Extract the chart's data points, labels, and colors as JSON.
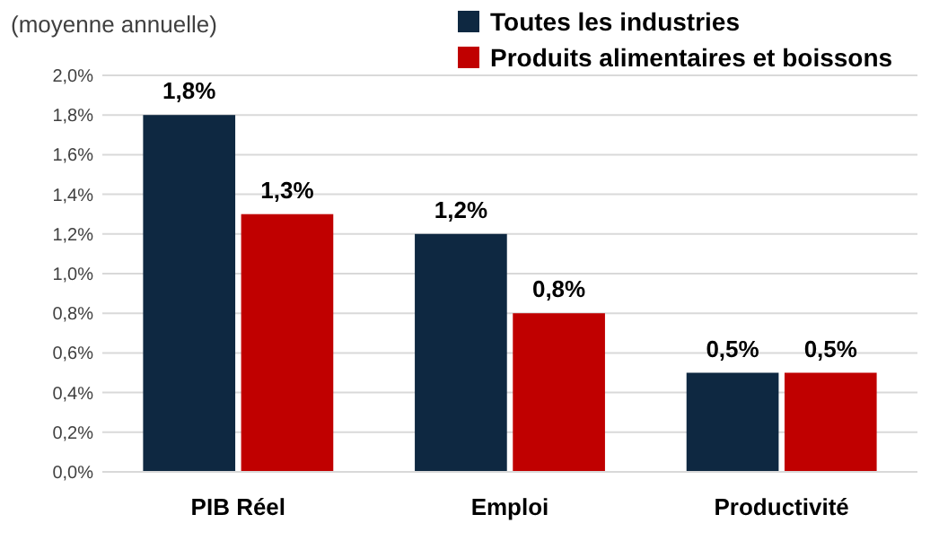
{
  "chart_data": {
    "type": "bar",
    "ylabel": "(moyenne annuelle)",
    "categories": [
      "PIB Réel",
      "Emploi",
      "Productivité"
    ],
    "series": [
      {
        "name": "Toutes les industries",
        "color": "#0e2841",
        "values": [
          1.8,
          1.2,
          0.5
        ],
        "value_labels": [
          "1,8%",
          "1,2%",
          "0,5%"
        ]
      },
      {
        "name": "Produits alimentaires et boissons",
        "color": "#c00000",
        "values": [
          1.3,
          0.8,
          0.5
        ],
        "value_labels": [
          "1,3%",
          "0,8%",
          "0,5%"
        ]
      }
    ],
    "ylim": [
      0,
      2
    ],
    "yticks": [
      {
        "value": 0,
        "label": "0,0%"
      },
      {
        "value": 0.2,
        "label": "0,2%"
      },
      {
        "value": 0.4,
        "label": "0,4%"
      },
      {
        "value": 0.6,
        "label": "0,6%"
      },
      {
        "value": 0.8,
        "label": "0,8%"
      },
      {
        "value": 1,
        "label": "1,0%"
      },
      {
        "value": 1.2,
        "label": "1,2%"
      },
      {
        "value": 1.4,
        "label": "1,4%"
      },
      {
        "value": 1.6,
        "label": "1,6%"
      },
      {
        "value": 1.8,
        "label": "1,8%"
      },
      {
        "value": 2,
        "label": "2,0%"
      }
    ],
    "grid": "y",
    "legend": "top right"
  }
}
